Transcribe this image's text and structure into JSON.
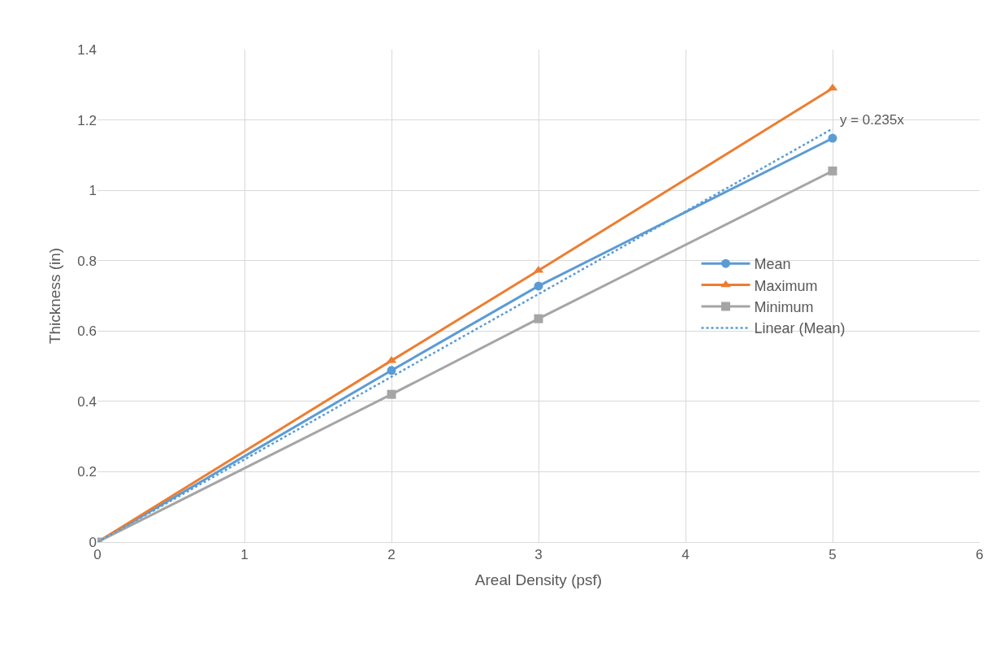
{
  "chart_data": {
    "type": "line",
    "xlabel": "Areal Density (psf)",
    "ylabel": "Thickness (in)",
    "x": [
      0,
      2,
      3,
      5
    ],
    "series": [
      {
        "name": "Mean",
        "color": "#5b9bd5",
        "values": [
          0,
          0.488,
          0.728,
          1.148
        ],
        "marker": "circle",
        "line_style": "solid"
      },
      {
        "name": "Maximum",
        "color": "#ed7d31",
        "values": [
          0,
          0.516,
          0.772,
          1.29
        ],
        "marker": "triangle",
        "line_style": "solid"
      },
      {
        "name": "Minimum",
        "color": "#a5a5a5",
        "values": [
          0,
          0.42,
          0.635,
          1.055
        ],
        "marker": "square",
        "line_style": "solid"
      },
      {
        "name": "Linear (Mean)",
        "color": "#5b9bd5",
        "x": [
          0,
          5
        ],
        "values": [
          0,
          1.175
        ],
        "marker": "none",
        "line_style": "dotted"
      }
    ],
    "annotations": [
      "y = 0.235x"
    ],
    "xlim": [
      0,
      6
    ],
    "xticks": [
      0,
      1,
      2,
      3,
      4,
      5,
      6
    ],
    "ylim": [
      0,
      1.4
    ],
    "yticks": [
      0,
      {
        "value": 0.2,
        "label": "0.2"
      },
      {
        "value": 0.4,
        "label": "0.4"
      },
      {
        "value": 0.6,
        "label": "0.6"
      },
      {
        "value": 0.8,
        "label": "0.8"
      },
      1,
      {
        "value": 1.2,
        "label": "1.2"
      },
      {
        "value": 1.4,
        "label": "1.4"
      }
    ],
    "grid": true,
    "legend": "right"
  }
}
